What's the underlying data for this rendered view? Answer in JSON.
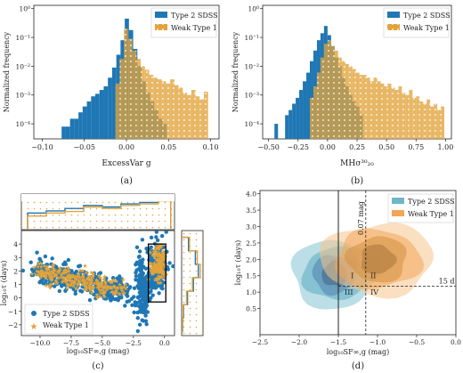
{
  "colors": {
    "blue": "#1f77b4",
    "orange": "#e2a33a",
    "teal": "#6fb6c8",
    "lightorange": "#f2a65a"
  },
  "captions": {
    "a": "(a)",
    "b": "(b)",
    "c": "(c)",
    "d": "(d)"
  },
  "chart_data": [
    {
      "panel": "a",
      "type": "bar",
      "xlabel": "ExcessVar g",
      "ylabel": "Normalized frequency",
      "yscale": "log",
      "xlim": [
        -0.11,
        0.11
      ],
      "ylim": [
        3e-05,
        1.3
      ],
      "xticks": [
        -0.1,
        -0.05,
        0.0,
        0.05,
        0.1
      ],
      "xtick_labels": [
        "−0.10",
        "−0.05",
        "0.00",
        "0.05",
        "0.10"
      ],
      "yticks": [
        0.0001,
        0.001,
        0.01,
        0.1,
        1
      ],
      "ytick_labels": [
        "10⁻⁴",
        "10⁻³",
        "10⁻²",
        "10⁻¹",
        "10⁰"
      ],
      "legend": [
        "Type 2 SDSS",
        "Weak Type 1"
      ],
      "legend_loc": "upper right",
      "series": [
        {
          "name": "Type 2 SDSS",
          "color": "blue",
          "style": "solid",
          "bins": [
            [
              -0.077,
              -0.072,
              8e-05
            ],
            [
              -0.072,
              -0.067,
              8e-05
            ],
            [
              -0.067,
              -0.062,
              0.00015
            ],
            [
              -0.062,
              -0.057,
              0.00015
            ],
            [
              -0.057,
              -0.052,
              0.00025
            ],
            [
              -0.052,
              -0.047,
              0.0004
            ],
            [
              -0.047,
              -0.042,
              0.0006
            ],
            [
              -0.042,
              -0.037,
              0.0009
            ],
            [
              -0.037,
              -0.032,
              0.0011
            ],
            [
              -0.032,
              -0.027,
              0.0015
            ],
            [
              -0.027,
              -0.022,
              0.002
            ],
            [
              -0.022,
              -0.017,
              0.004
            ],
            [
              -0.017,
              -0.012,
              0.009
            ],
            [
              -0.012,
              -0.007,
              0.025
            ],
            [
              -0.007,
              -0.002,
              0.08
            ],
            [
              -0.002,
              0.003,
              0.45
            ],
            [
              0.003,
              0.008,
              0.18
            ],
            [
              0.008,
              0.013,
              0.04
            ],
            [
              0.013,
              0.018,
              0.01
            ],
            [
              0.018,
              0.023,
              0.003
            ],
            [
              0.023,
              0.028,
              0.0012
            ],
            [
              0.028,
              0.033,
              0.0006
            ],
            [
              0.033,
              0.038,
              0.0003
            ],
            [
              0.038,
              0.043,
              0.00015
            ],
            [
              0.043,
              0.048,
              0.0001
            ]
          ]
        },
        {
          "name": "Weak Type 1",
          "color": "orange",
          "style": "dotted",
          "bins": [
            [
              -0.013,
              -0.008,
              0.0025
            ],
            [
              -0.008,
              -0.003,
              0.018
            ],
            [
              -0.003,
              0.002,
              0.2
            ],
            [
              0.002,
              0.007,
              0.09
            ],
            [
              0.007,
              0.012,
              0.035
            ],
            [
              0.012,
              0.017,
              0.018
            ],
            [
              0.017,
              0.022,
              0.01
            ],
            [
              0.022,
              0.027,
              0.0075
            ],
            [
              0.027,
              0.032,
              0.005
            ],
            [
              0.032,
              0.037,
              0.004
            ],
            [
              0.037,
              0.042,
              0.0035
            ],
            [
              0.042,
              0.047,
              0.003
            ],
            [
              0.047,
              0.052,
              0.0025
            ],
            [
              0.052,
              0.057,
              0.0035
            ],
            [
              0.057,
              0.062,
              0.0022
            ],
            [
              0.062,
              0.067,
              0.0018
            ],
            [
              0.067,
              0.072,
              0.0012
            ],
            [
              0.072,
              0.077,
              0.001
            ],
            [
              0.077,
              0.082,
              0.0015
            ],
            [
              0.082,
              0.087,
              0.0009
            ],
            [
              0.087,
              0.092,
              0.0007
            ],
            [
              0.092,
              0.097,
              0.0013
            ]
          ]
        }
      ]
    },
    {
      "panel": "b",
      "type": "bar",
      "xlabel": "MHσ³⁰₂₀",
      "ylabel": "Normalized frequency",
      "yscale": "log",
      "xlim": [
        -0.55,
        1.05
      ],
      "ylim": [
        3e-05,
        1.3
      ],
      "xticks": [
        -0.5,
        -0.25,
        0.0,
        0.25,
        0.5,
        0.75,
        1.0
      ],
      "xtick_labels": [
        "−0.50",
        "−0.25",
        "0.00",
        "0.25",
        "0.50",
        "0.75",
        "1.00"
      ],
      "yticks": [
        0.0001,
        0.001,
        0.01,
        0.1,
        1
      ],
      "ytick_labels": [
        "10⁻⁴",
        "10⁻³",
        "10⁻²",
        "10⁻¹",
        "10⁰"
      ],
      "legend": [
        "Type 2 SDSS",
        "Weak Type 1"
      ],
      "legend_loc": "upper right",
      "series": [
        {
          "name": "Type 2 SDSS",
          "color": "blue",
          "style": "solid",
          "bins": [
            [
              -0.45,
              -0.42,
              0.0001
            ],
            [
              -0.36,
              -0.33,
              0.0002
            ],
            [
              -0.33,
              -0.3,
              0.0003
            ],
            [
              -0.3,
              -0.27,
              0.0005
            ],
            [
              -0.27,
              -0.24,
              0.0008
            ],
            [
              -0.24,
              -0.21,
              0.0015
            ],
            [
              -0.21,
              -0.18,
              0.003
            ],
            [
              -0.18,
              -0.15,
              0.006
            ],
            [
              -0.15,
              -0.12,
              0.015
            ],
            [
              -0.12,
              -0.09,
              0.035
            ],
            [
              -0.09,
              -0.06,
              0.08
            ],
            [
              -0.06,
              -0.03,
              0.14
            ],
            [
              -0.03,
              0.0,
              0.25
            ],
            [
              0.0,
              0.03,
              0.12
            ],
            [
              0.03,
              0.06,
              0.05
            ],
            [
              0.06,
              0.09,
              0.02
            ],
            [
              0.09,
              0.12,
              0.01
            ],
            [
              0.12,
              0.15,
              0.004
            ],
            [
              0.15,
              0.18,
              0.002
            ],
            [
              0.18,
              0.21,
              0.001
            ],
            [
              0.21,
              0.24,
              0.0006
            ],
            [
              0.24,
              0.27,
              0.0004
            ],
            [
              0.27,
              0.3,
              0.0002
            ]
          ]
        },
        {
          "name": "Weak Type 1",
          "color": "orange",
          "style": "dotted",
          "bins": [
            [
              -0.15,
              -0.12,
              0.0008
            ],
            [
              -0.12,
              -0.09,
              0.002
            ],
            [
              -0.09,
              -0.06,
              0.006
            ],
            [
              -0.06,
              -0.03,
              0.02
            ],
            [
              -0.03,
              0.0,
              0.06
            ],
            [
              0.0,
              0.03,
              0.08
            ],
            [
              0.03,
              0.06,
              0.05
            ],
            [
              0.06,
              0.09,
              0.035
            ],
            [
              0.09,
              0.12,
              0.02
            ],
            [
              0.12,
              0.15,
              0.015
            ],
            [
              0.15,
              0.18,
              0.012
            ],
            [
              0.18,
              0.21,
              0.01
            ],
            [
              0.21,
              0.24,
              0.008
            ],
            [
              0.24,
              0.27,
              0.006
            ],
            [
              0.27,
              0.3,
              0.005
            ],
            [
              0.3,
              0.33,
              0.005
            ],
            [
              0.33,
              0.36,
              0.004
            ],
            [
              0.36,
              0.39,
              0.003
            ],
            [
              0.39,
              0.42,
              0.004
            ],
            [
              0.42,
              0.45,
              0.003
            ],
            [
              0.45,
              0.48,
              0.0025
            ],
            [
              0.48,
              0.51,
              0.002
            ],
            [
              0.51,
              0.54,
              0.0025
            ],
            [
              0.54,
              0.57,
              0.0018
            ],
            [
              0.57,
              0.6,
              0.0015
            ],
            [
              0.6,
              0.63,
              0.002
            ],
            [
              0.63,
              0.66,
              0.0012
            ],
            [
              0.66,
              0.69,
              0.001
            ],
            [
              0.69,
              0.72,
              0.0015
            ],
            [
              0.72,
              0.75,
              0.0008
            ],
            [
              0.75,
              0.78,
              0.0009
            ],
            [
              0.78,
              0.81,
              0.0006
            ],
            [
              0.81,
              0.84,
              0.0005
            ],
            [
              0.84,
              0.87,
              0.0007
            ],
            [
              0.87,
              0.9,
              0.0004
            ],
            [
              0.9,
              0.93,
              0.0005
            ],
            [
              0.93,
              0.96,
              0.0003
            ],
            [
              0.96,
              0.99,
              0.0004
            ]
          ]
        }
      ]
    },
    {
      "panel": "c",
      "type": "scatter",
      "xlabel": "log₁₀SF∞,g (mag)",
      "ylabel": "log₁₀τ (days)",
      "xlim": [
        -11.5,
        0.8
      ],
      "ylim": [
        -2.8,
        5.0
      ],
      "xticks": [
        -10,
        -7.5,
        -5,
        -2.5,
        0
      ],
      "xtick_labels": [
        "−10.0",
        "−7.5",
        "−5.0",
        "−2.5",
        "0.0"
      ],
      "yticks": [
        -2,
        -1,
        0,
        1,
        2,
        3,
        4
      ],
      "ytick_labels": [
        "−2",
        "−1",
        "0",
        "1",
        "2",
        "3",
        "4"
      ],
      "legend": [
        "Type 2 SDSS",
        "Weak Type 1"
      ],
      "legend_loc": "lower left",
      "highlight_box": {
        "x": [
          -1.3,
          0.1
        ],
        "y": [
          -0.3,
          4.0
        ]
      },
      "series": [
        {
          "name": "Type 2 SDSS",
          "color": "blue",
          "marker": "circle",
          "trend": {
            "x0": -10.5,
            "y0": 2.0,
            "x1": -3.0,
            "y1": 0.4,
            "spread": 0.8
          },
          "clusters": [
            {
              "cx": -0.6,
              "cy": 2.4,
              "sx": 0.4,
              "sy": 1.0
            },
            {
              "cx": -1.8,
              "cy": 0.5,
              "sx": 0.3,
              "sy": 1.3
            }
          ]
        },
        {
          "name": "Weak Type 1",
          "color": "orange",
          "marker": "star",
          "trend": {
            "x0": -10.3,
            "y0": 2.0,
            "x1": -3.5,
            "y1": 0.6,
            "spread": 0.6
          },
          "clusters": [
            {
              "cx": -0.5,
              "cy": 2.6,
              "sx": 0.3,
              "sy": 0.6
            }
          ]
        }
      ],
      "hist_top": {
        "bins": [
          -11,
          -9.5,
          -8,
          -6.5,
          -5,
          -3.5,
          -2,
          -0.5,
          0.5
        ],
        "type2": [
          0.55,
          0.62,
          0.7,
          0.8,
          0.75,
          0.85,
          0.9,
          1.0
        ],
        "weak1": [
          0.45,
          0.55,
          0.6,
          0.75,
          0.7,
          0.8,
          0.85,
          0.95
        ]
      },
      "hist_right": {
        "bins": [
          -2.5,
          -1.5,
          -0.5,
          0.5,
          1.5,
          2.5,
          3.5,
          4.5
        ],
        "type2": [
          0.05,
          0.1,
          0.3,
          0.6,
          0.85,
          0.7,
          0.35
        ],
        "weak1": [
          0.04,
          0.08,
          0.25,
          0.55,
          0.95,
          0.8,
          0.4
        ]
      }
    },
    {
      "panel": "d",
      "type": "contour",
      "xlabel": "log₁₀SF∞,g (mag)",
      "ylabel": "log₁₀τ (days)",
      "xlim": [
        -2.5,
        0.0
      ],
      "ylim": [
        -0.3,
        4.1
      ],
      "xticks": [
        -2.5,
        -2.0,
        -1.5,
        -1.0,
        -0.5,
        0.0
      ],
      "xtick_labels": [
        "−2.5",
        "−2.0",
        "−1.5",
        "−1.0",
        "−0.5",
        "0.0"
      ],
      "yticks": [
        0.5,
        1.0,
        1.5,
        2.0,
        2.5,
        3.0,
        3.5,
        4.0
      ],
      "ytick_labels": [
        "0.5",
        "1.0",
        "1.5",
        "2.0",
        "2.5",
        "3.0",
        "3.5",
        "4.0"
      ],
      "legend": [
        "Type 2 SDSS",
        "Weak Type 1"
      ],
      "legend_loc": "upper right",
      "vlines": [
        -1.5,
        -1.15
      ],
      "hline": 1.18,
      "annotations": {
        "vline_label": "0.07 mag",
        "hline_label": "15 d",
        "quadrants": [
          "I",
          "II",
          "III",
          "IV"
        ]
      },
      "series": [
        {
          "name": "Type 2 SDSS",
          "color": "teal",
          "center": [
            -1.55,
            1.55
          ],
          "levels": [
            [
              0.55,
              1.05
            ],
            [
              0.4,
              0.8
            ],
            [
              0.28,
              0.6
            ],
            [
              0.16,
              0.38
            ]
          ]
        },
        {
          "name": "Weak Type 1",
          "color": "lightorange",
          "center": [
            -1.0,
            2.0
          ],
          "levels": [
            [
              0.72,
              1.1
            ],
            [
              0.55,
              0.9
            ],
            [
              0.38,
              0.7
            ],
            [
              0.22,
              0.45
            ]
          ]
        }
      ]
    }
  ]
}
